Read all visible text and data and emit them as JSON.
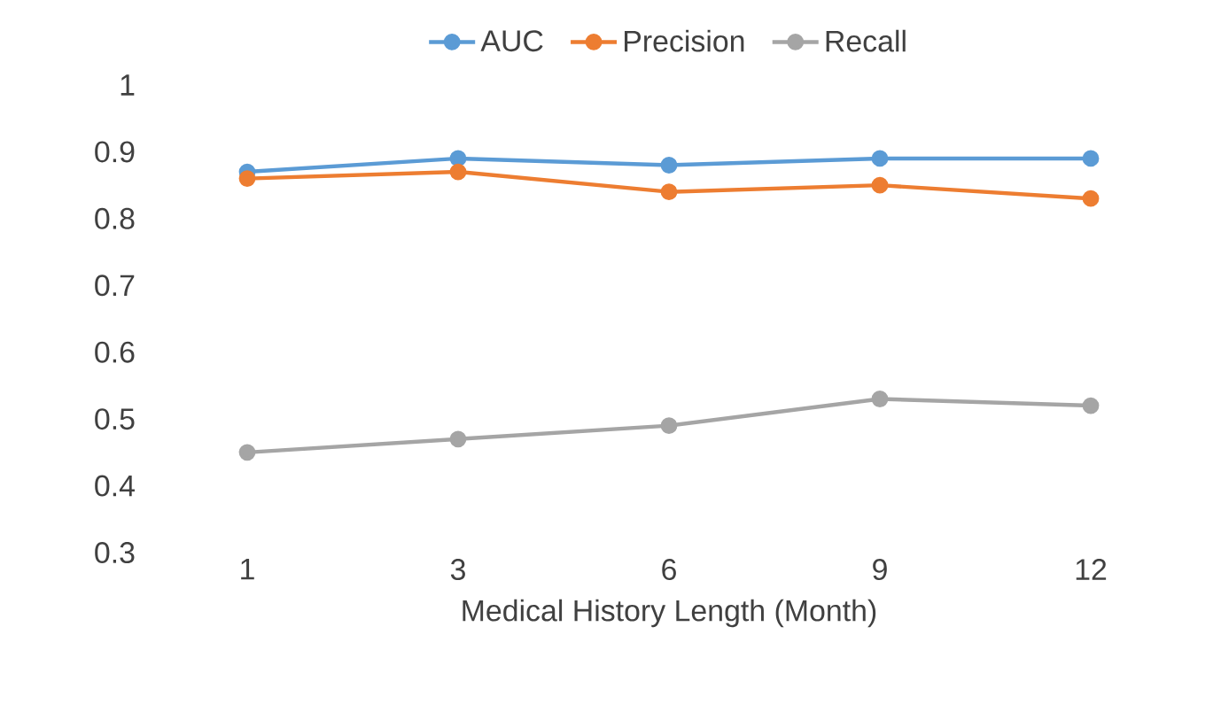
{
  "chart_data": {
    "type": "line",
    "xlabel": "Medical History Length (Month)",
    "categories": [
      "1",
      "3",
      "6",
      "9",
      "12"
    ],
    "series": [
      {
        "name": "AUC",
        "color": "#5b9bd5",
        "values": [
          0.87,
          0.89,
          0.88,
          0.89,
          0.89
        ]
      },
      {
        "name": "Precision",
        "color": "#ed7d31",
        "values": [
          0.86,
          0.87,
          0.84,
          0.85,
          0.83
        ]
      },
      {
        "name": "Recall",
        "color": "#a5a5a5",
        "values": [
          0.45,
          0.47,
          0.49,
          0.53,
          0.52
        ]
      }
    ],
    "ylim": [
      0.3,
      1
    ],
    "yticks": [
      0.3,
      0.4,
      0.5,
      0.6,
      0.7,
      0.8,
      0.9,
      1
    ],
    "grid": false,
    "legend": "top",
    "marker": "circle",
    "line_style": "solid"
  }
}
